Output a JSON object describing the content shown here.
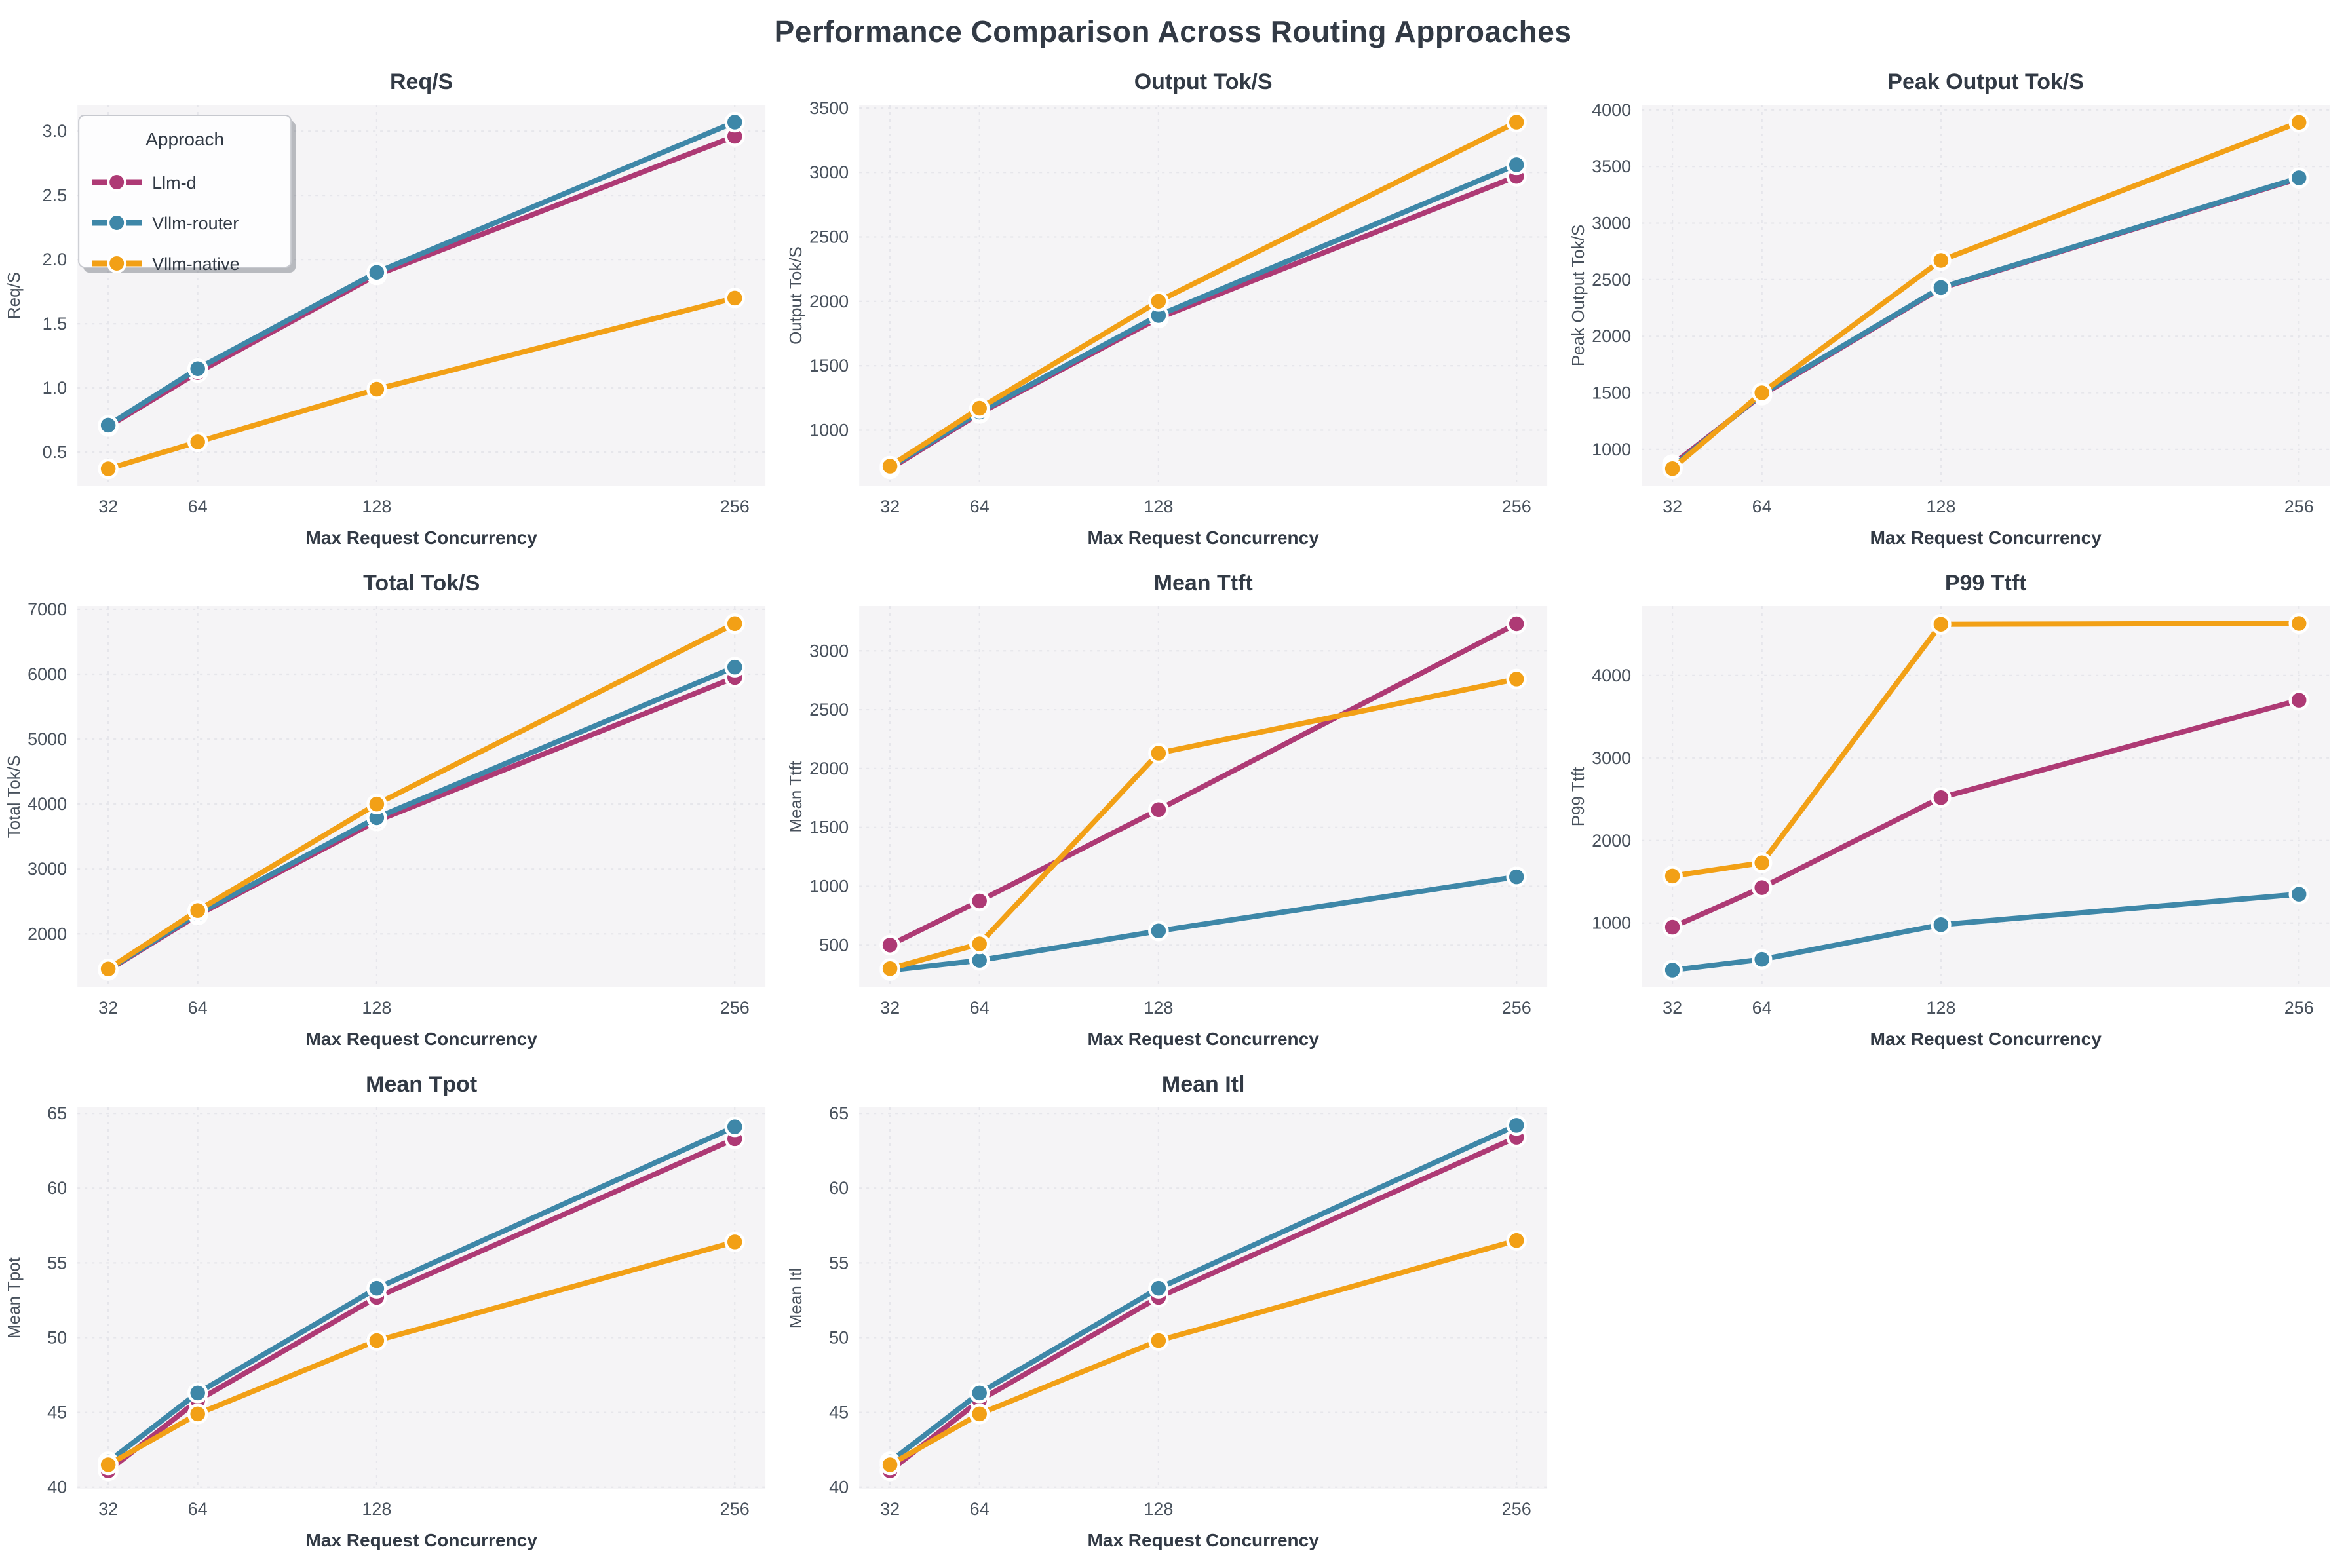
{
  "page_title": "Performance Comparison Across Routing Approaches",
  "legend": {
    "title": "Approach",
    "items": [
      {
        "label": "Llm-d",
        "color": "#ae3a75"
      },
      {
        "label": "Vllm-router",
        "color": "#3e87a8"
      },
      {
        "label": "Vllm-native",
        "color": "#f2a016"
      }
    ]
  },
  "axis": {
    "xlabel": "Max Request Concurrency",
    "x_categories": [
      32,
      64,
      128,
      256
    ]
  },
  "style_colors": {
    "plot_bg": "#f5f4f6",
    "grid": "#e6e6eb",
    "title_text": "#323a45",
    "tick_text": "#49525d",
    "marker_edge": "#ffffff"
  },
  "chart_data": [
    {
      "type": "line",
      "title": "Req/S",
      "ylabel": "Req/S",
      "xlabel": "Max Request Concurrency",
      "x": [
        32,
        64,
        128,
        256
      ],
      "xlim": [
        21,
        267
      ],
      "ylim": [
        0.235,
        3.205
      ],
      "yticks": [
        0.5,
        1.0,
        1.5,
        2.0,
        2.5,
        3.0
      ],
      "ytick_decimals": 1,
      "grid": true,
      "legend": true,
      "series": [
        {
          "name": "Llm-d",
          "color": "#ae3a75",
          "values": [
            0.7,
            1.12,
            1.88,
            2.96
          ]
        },
        {
          "name": "Vllm-router",
          "color": "#3e87a8",
          "values": [
            0.71,
            1.15,
            1.9,
            3.07
          ]
        },
        {
          "name": "Vllm-native",
          "color": "#f2a016",
          "values": [
            0.37,
            0.58,
            0.99,
            1.7
          ]
        }
      ]
    },
    {
      "type": "line",
      "title": "Output Tok/S",
      "ylabel": "Output Tok/S",
      "xlabel": "Max Request Concurrency",
      "x": [
        32,
        64,
        128,
        256
      ],
      "xlim": [
        21,
        267
      ],
      "ylim": [
        565,
        3525
      ],
      "yticks": [
        1000,
        1500,
        2000,
        2500,
        3000,
        3500
      ],
      "ytick_decimals": 0,
      "grid": true,
      "legend": false,
      "series": [
        {
          "name": "Llm-d",
          "color": "#ae3a75",
          "values": [
            700,
            1130,
            1870,
            2970
          ]
        },
        {
          "name": "Vllm-router",
          "color": "#3e87a8",
          "values": [
            710,
            1140,
            1890,
            3060
          ]
        },
        {
          "name": "Vllm-native",
          "color": "#f2a016",
          "values": [
            720,
            1170,
            2000,
            3390
          ]
        }
      ]
    },
    {
      "type": "line",
      "title": "Peak Output Tok/S",
      "ylabel": "Peak Output Tok/S",
      "xlabel": "Max Request Concurrency",
      "x": [
        32,
        64,
        128,
        256
      ],
      "xlim": [
        21,
        267
      ],
      "ylim": [
        675,
        4045
      ],
      "yticks": [
        1000,
        1500,
        2000,
        2500,
        3000,
        3500,
        4000
      ],
      "ytick_decimals": 0,
      "grid": true,
      "legend": false,
      "series": [
        {
          "name": "Llm-d",
          "color": "#ae3a75",
          "values": [
            865,
            1480,
            2425,
            3395
          ]
        },
        {
          "name": "Vllm-router",
          "color": "#3e87a8",
          "values": [
            845,
            1490,
            2430,
            3400
          ]
        },
        {
          "name": "Vllm-native",
          "color": "#f2a016",
          "values": [
            830,
            1500,
            2670,
            3890
          ]
        }
      ]
    },
    {
      "type": "line",
      "title": "Total Tok/S",
      "ylabel": "Total Tok/S",
      "xlabel": "Max Request Concurrency",
      "x": [
        32,
        64,
        128,
        256
      ],
      "xlim": [
        21,
        267
      ],
      "ylim": [
        1175,
        7050
      ],
      "yticks": [
        2000,
        3000,
        4000,
        5000,
        6000,
        7000
      ],
      "ytick_decimals": 0,
      "grid": true,
      "legend": false,
      "series": [
        {
          "name": "Llm-d",
          "color": "#ae3a75",
          "values": [
            1440,
            2290,
            3740,
            5950
          ]
        },
        {
          "name": "Vllm-router",
          "color": "#3e87a8",
          "values": [
            1450,
            2310,
            3790,
            6110
          ]
        },
        {
          "name": "Vllm-native",
          "color": "#f2a016",
          "values": [
            1460,
            2360,
            4000,
            6780
          ]
        }
      ]
    },
    {
      "type": "line",
      "title": "Mean Ttft",
      "ylabel": "Mean Ttft",
      "xlabel": "Max Request Concurrency",
      "x": [
        32,
        64,
        128,
        256
      ],
      "xlim": [
        21,
        267
      ],
      "ylim": [
        140,
        3380
      ],
      "yticks": [
        500,
        1000,
        1500,
        2000,
        2500,
        3000
      ],
      "ytick_decimals": 0,
      "grid": true,
      "legend": false,
      "series": [
        {
          "name": "Llm-d",
          "color": "#ae3a75",
          "values": [
            500,
            875,
            1650,
            3230
          ]
        },
        {
          "name": "Vllm-router",
          "color": "#3e87a8",
          "values": [
            285,
            370,
            620,
            1080
          ]
        },
        {
          "name": "Vllm-native",
          "color": "#f2a016",
          "values": [
            300,
            510,
            2130,
            2760
          ]
        }
      ]
    },
    {
      "type": "line",
      "title": "P99 Ttft",
      "ylabel": "P99 Ttft",
      "xlabel": "Max Request Concurrency",
      "x": [
        32,
        64,
        128,
        256
      ],
      "xlim": [
        21,
        267
      ],
      "ylim": [
        220,
        4840
      ],
      "yticks": [
        1000,
        2000,
        3000,
        4000
      ],
      "ytick_decimals": 0,
      "grid": true,
      "legend": false,
      "series": [
        {
          "name": "Llm-d",
          "color": "#ae3a75",
          "values": [
            950,
            1430,
            2520,
            3700
          ]
        },
        {
          "name": "Vllm-router",
          "color": "#3e87a8",
          "values": [
            430,
            560,
            980,
            1350
          ]
        },
        {
          "name": "Vllm-native",
          "color": "#f2a016",
          "values": [
            1570,
            1730,
            4620,
            4630
          ]
        }
      ]
    },
    {
      "type": "line",
      "title": "Mean Tpot",
      "ylabel": "Mean Tpot",
      "xlabel": "Max Request Concurrency",
      "x": [
        32,
        64,
        128,
        256
      ],
      "xlim": [
        21,
        267
      ],
      "ylim": [
        39.9,
        65.4
      ],
      "yticks": [
        40,
        45,
        50,
        55,
        60,
        65
      ],
      "ytick_decimals": 0,
      "grid": true,
      "legend": false,
      "series": [
        {
          "name": "Llm-d",
          "color": "#ae3a75",
          "values": [
            41.1,
            45.8,
            52.7,
            63.3
          ]
        },
        {
          "name": "Vllm-router",
          "color": "#3e87a8",
          "values": [
            41.7,
            46.3,
            53.3,
            64.1
          ]
        },
        {
          "name": "Vllm-native",
          "color": "#f2a016",
          "values": [
            41.5,
            44.9,
            49.8,
            56.4
          ]
        }
      ]
    },
    {
      "type": "line",
      "title": "Mean Itl",
      "ylabel": "Mean Itl",
      "xlabel": "Max Request Concurrency",
      "x": [
        32,
        64,
        128,
        256
      ],
      "xlim": [
        21,
        267
      ],
      "ylim": [
        39.9,
        65.4
      ],
      "yticks": [
        40,
        45,
        50,
        55,
        60,
        65
      ],
      "ytick_decimals": 0,
      "grid": true,
      "legend": false,
      "series": [
        {
          "name": "Llm-d",
          "color": "#ae3a75",
          "values": [
            41.1,
            45.8,
            52.7,
            63.4
          ]
        },
        {
          "name": "Vllm-router",
          "color": "#3e87a8",
          "values": [
            41.7,
            46.3,
            53.3,
            64.2
          ]
        },
        {
          "name": "Vllm-native",
          "color": "#f2a016",
          "values": [
            41.5,
            44.9,
            49.8,
            56.5
          ]
        }
      ]
    }
  ]
}
